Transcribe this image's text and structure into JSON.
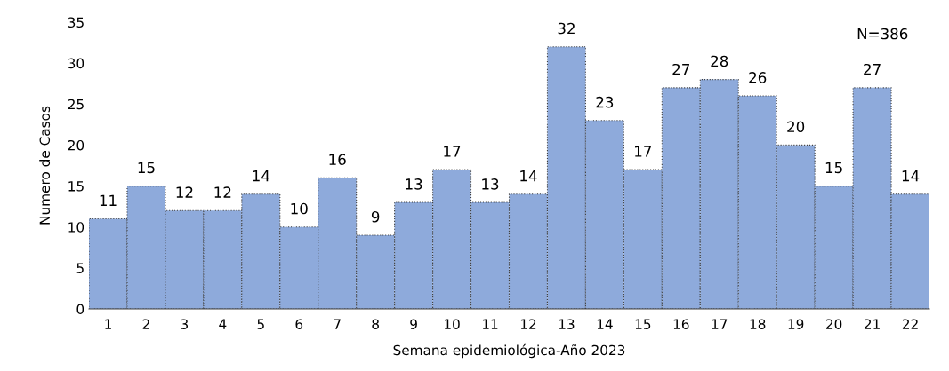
{
  "chart_data": {
    "type": "bar",
    "xlabel": "Semana epidemiológica-Año 2023",
    "ylabel": "Numero de Casos",
    "categories": [
      "1",
      "2",
      "3",
      "4",
      "5",
      "6",
      "7",
      "8",
      "9",
      "10",
      "11",
      "12",
      "13",
      "14",
      "15",
      "16",
      "17",
      "18",
      "19",
      "20",
      "21",
      "22"
    ],
    "values": [
      11,
      15,
      12,
      12,
      14,
      10,
      16,
      9,
      13,
      17,
      13,
      14,
      32,
      23,
      17,
      27,
      28,
      26,
      20,
      15,
      27,
      14
    ],
    "color": "#8eaadb",
    "ylim": [
      0,
      35
    ],
    "yticks": [
      0,
      5,
      10,
      15,
      20,
      25,
      30,
      35
    ],
    "grid": false,
    "data_labels": true,
    "annotations": [
      "N=386"
    ]
  }
}
